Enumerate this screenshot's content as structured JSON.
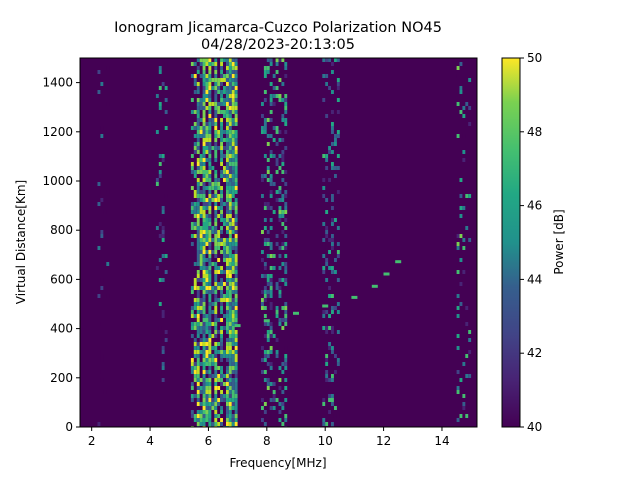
{
  "chart_data": {
    "type": "heatmap",
    "title": "Ionogram Jicamarca-Cuzco Polarization NO45",
    "subtitle": "04/28/2023-20:13:05",
    "xlabel": "Frequency[MHz]",
    "ylabel": "Virtual Distance[Km]",
    "xlim": [
      1.6,
      15.2
    ],
    "ylim": [
      0,
      1500
    ],
    "xticks": [
      2,
      4,
      6,
      8,
      10,
      12,
      14
    ],
    "yticks": [
      0,
      200,
      400,
      600,
      800,
      1000,
      1200,
      1400
    ],
    "colorbar": {
      "label": "Power [dB]",
      "range": [
        40,
        50
      ],
      "ticks": [
        40,
        42,
        44,
        46,
        48,
        50
      ],
      "colormap": "viridis"
    },
    "background_level_db": 40,
    "frequency_bands": [
      {
        "start_mhz": 5.4,
        "end_mhz": 7.0,
        "level_db": 50,
        "density": 0.75
      },
      {
        "start_mhz": 7.8,
        "end_mhz": 8.7,
        "level_db": 48,
        "density": 0.35
      },
      {
        "start_mhz": 4.2,
        "end_mhz": 4.6,
        "level_db": 47,
        "density": 0.2
      },
      {
        "start_mhz": 9.9,
        "end_mhz": 10.5,
        "level_db": 47,
        "density": 0.3
      },
      {
        "start_mhz": 14.5,
        "end_mhz": 15.0,
        "level_db": 48,
        "density": 0.15
      },
      {
        "start_mhz": 2.2,
        "end_mhz": 2.6,
        "level_db": 45,
        "density": 0.08
      }
    ],
    "echo_trace": [
      {
        "frequency_mhz": 7.0,
        "distance_km": 410
      },
      {
        "frequency_mhz": 8.0,
        "distance_km": 430
      },
      {
        "frequency_mhz": 9.0,
        "distance_km": 460
      },
      {
        "frequency_mhz": 10.0,
        "distance_km": 490
      },
      {
        "frequency_mhz": 11.0,
        "distance_km": 525
      },
      {
        "frequency_mhz": 11.7,
        "distance_km": 570
      },
      {
        "frequency_mhz": 12.1,
        "distance_km": 620
      },
      {
        "frequency_mhz": 12.5,
        "distance_km": 670
      }
    ]
  }
}
